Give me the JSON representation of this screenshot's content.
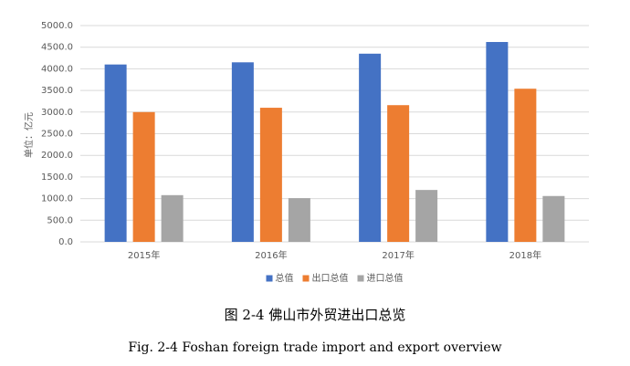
{
  "chart_data": {
    "type": "bar",
    "title": "图 2-4 佛山市外贸进出口总览",
    "subtitle": "Fig. 2-4 Foshan foreign trade import and export overview",
    "y_label": "单位：亿元",
    "categories": [
      "2015年",
      "2016年",
      "2017年",
      "2018年"
    ],
    "series": [
      {
        "name": "总值",
        "color": "#4472c4",
        "values": [
          4100,
          4150,
          4350,
          4620
        ]
      },
      {
        "name": "出口总值",
        "color": "#ed7d31",
        "values": [
          3000,
          3100,
          3160,
          3540
        ]
      },
      {
        "name": "进口总值",
        "color": "#a5a5a5",
        "values": [
          1080,
          1010,
          1200,
          1060
        ]
      }
    ],
    "ylim": [
      0,
      5000
    ],
    "yticks": [
      {
        "value": 0,
        "label": "0.0"
      },
      {
        "value": 500,
        "label": "500.0"
      },
      {
        "value": 1000,
        "label": "1000.0"
      },
      {
        "value": 1500,
        "label": "1500.0"
      },
      {
        "value": 2000,
        "label": "2000.0"
      },
      {
        "value": 2500,
        "label": "2500.0"
      },
      {
        "value": 3000,
        "label": "3000.0"
      },
      {
        "value": 3500,
        "label": "3500.0"
      },
      {
        "value": 4000,
        "label": "4000.0"
      },
      {
        "value": 4500,
        "label": "4500.0"
      },
      {
        "value": 5000,
        "label": "5000.0"
      }
    ],
    "grid": true,
    "legend": "bottom"
  }
}
